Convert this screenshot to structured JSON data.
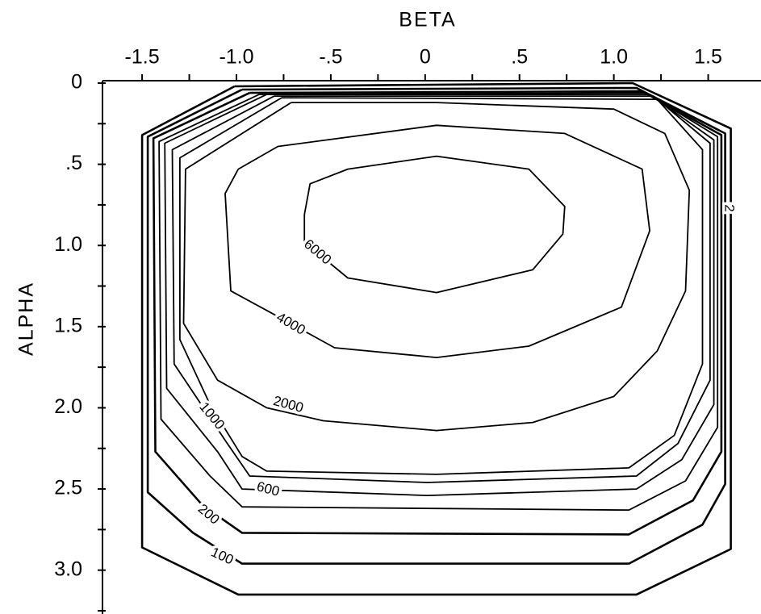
{
  "chart_data": {
    "type": "contour",
    "x_label": "BETA",
    "y_label": "ALPHA",
    "xlim": [
      -1.71,
      1.75
    ],
    "ylim": [
      0,
      3.27
    ],
    "y_inverted": true,
    "xticks": [
      -1.5,
      {
        "value": -1.0,
        "label": "-1.0"
      },
      {
        "value": -0.5,
        "label": "-.5"
      },
      0,
      {
        "value": 0.5,
        "label": ".5"
      },
      {
        "value": 1.0,
        "label": "1.0"
      },
      1.5
    ],
    "yticks": [
      0,
      {
        "value": 0.5,
        "label": ".5"
      },
      {
        "value": 1.0,
        "label": "1.0"
      },
      1.5,
      {
        "value": 2.0,
        "label": "2.0"
      },
      2.5,
      {
        "value": 3.0,
        "label": "3.0"
      }
    ],
    "xminorticks": [
      -1.25,
      -0.75,
      -0.25,
      0.25,
      0.75,
      1.25
    ],
    "yminorticks": [
      0.25,
      0.75,
      1.25,
      1.75,
      2.25,
      2.75,
      3.25
    ],
    "color": "#000000",
    "contours": [
      {
        "level": 2,
        "beta": [
          -1.01,
          -1.5,
          -1.5,
          -0.99,
          1.12,
          1.62,
          1.62,
          1.1,
          -1.01
        ],
        "alpha": [
          0.02,
          0.32,
          2.86,
          3.15,
          3.15,
          2.87,
          0.28,
          0.0,
          0.02
        ]
      },
      {
        "level": 100,
        "beta": [
          -0.97,
          -1.47,
          -1.47,
          -1.23,
          -0.97,
          1.08,
          1.47,
          1.59,
          1.59,
          1.12,
          -0.97
        ],
        "alpha": [
          0.04,
          0.33,
          2.52,
          2.77,
          2.96,
          2.96,
          2.72,
          2.47,
          0.31,
          0.03,
          0.04
        ]
      },
      {
        "level": 200,
        "beta": [
          -0.93,
          -1.44,
          -1.43,
          -1.18,
          -0.97,
          1.08,
          1.42,
          1.57,
          1.57,
          1.15,
          -0.93
        ],
        "alpha": [
          0.06,
          0.34,
          2.27,
          2.6,
          2.77,
          2.78,
          2.57,
          2.27,
          0.32,
          0.05,
          0.06
        ]
      },
      {
        "level": null,
        "beta": [
          -0.88,
          -1.41,
          -1.4,
          -1.14,
          -0.97,
          1.08,
          1.38,
          1.55,
          1.55,
          1.17,
          -0.88
        ],
        "alpha": [
          0.07,
          0.36,
          2.07,
          2.42,
          2.61,
          2.63,
          2.45,
          2.12,
          0.33,
          0.06,
          0.07
        ]
      },
      {
        "level": 600,
        "beta": [
          -0.84,
          -1.38,
          -1.37,
          -1.1,
          -0.97,
          0.01,
          1.12,
          1.36,
          1.53,
          1.53,
          1.19,
          -0.84
        ],
        "alpha": [
          0.07,
          0.37,
          1.88,
          2.27,
          2.5,
          2.54,
          2.5,
          2.32,
          1.98,
          0.35,
          0.07,
          0.07
        ]
      },
      {
        "level": null,
        "beta": [
          -0.8,
          -1.34,
          -1.33,
          -1.06,
          -0.93,
          0.01,
          1.12,
          1.34,
          1.51,
          1.51,
          1.21,
          -0.8
        ],
        "alpha": [
          0.08,
          0.41,
          1.73,
          2.2,
          2.42,
          2.46,
          2.42,
          2.22,
          1.83,
          0.37,
          0.08,
          0.08
        ]
      },
      {
        "level": 1000,
        "beta": [
          -0.76,
          -1.3,
          -1.3,
          -1.14,
          -0.97,
          -0.84,
          0.06,
          1.08,
          1.32,
          1.47,
          1.47,
          1.23,
          -0.76
        ],
        "alpha": [
          0.09,
          0.46,
          1.58,
          1.98,
          2.3,
          2.39,
          2.41,
          2.37,
          2.17,
          1.73,
          0.41,
          0.1,
          0.09
        ]
      },
      {
        "level": 2000,
        "beta": [
          -0.71,
          -1.27,
          -1.28,
          -1.1,
          -0.84,
          -0.54,
          0.06,
          0.57,
          1.0,
          1.23,
          1.38,
          1.4,
          1.27,
          1.0,
          0.06,
          -0.71
        ],
        "alpha": [
          0.12,
          0.53,
          1.48,
          1.83,
          2.0,
          2.08,
          2.14,
          2.09,
          1.93,
          1.65,
          1.28,
          0.66,
          0.31,
          0.16,
          0.12,
          0.12
        ]
      },
      {
        "level": 4000,
        "beta": [
          -0.99,
          -1.06,
          -1.03,
          -0.84,
          -0.48,
          0.06,
          0.55,
          1.04,
          1.19,
          1.15,
          0.74,
          0.06,
          -0.78,
          -0.99
        ],
        "alpha": [
          0.53,
          0.68,
          1.28,
          1.4,
          1.63,
          1.69,
          1.62,
          1.38,
          0.91,
          0.53,
          0.31,
          0.26,
          0.39,
          0.53
        ]
      },
      {
        "level": 6000,
        "beta": [
          -0.64,
          -0.61,
          -0.41,
          0.06,
          0.55,
          0.74,
          0.73,
          0.57,
          0.06,
          -0.41,
          -0.64,
          -0.64
        ],
        "alpha": [
          0.81,
          0.62,
          0.53,
          0.45,
          0.53,
          0.76,
          0.93,
          1.15,
          1.29,
          1.2,
          0.98,
          0.81
        ]
      }
    ]
  }
}
